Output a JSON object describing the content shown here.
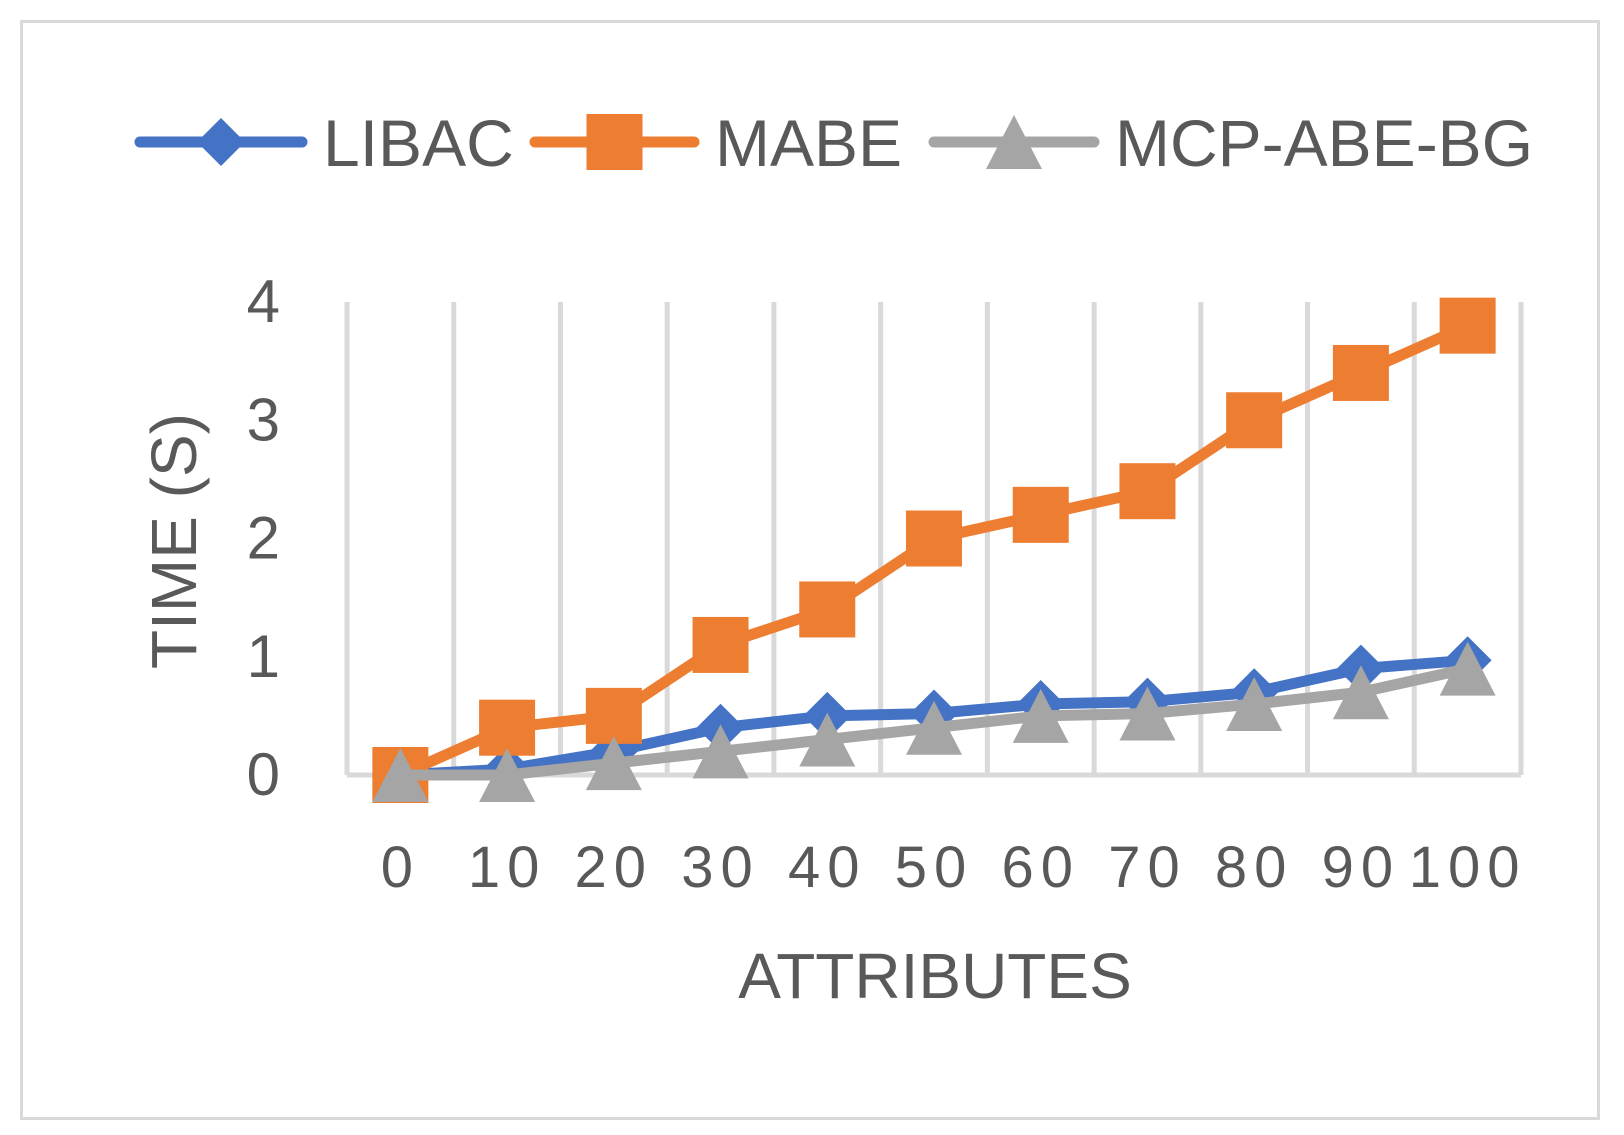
{
  "chart_data": {
    "type": "line",
    "title": "",
    "xlabel": "ATTRIBUTES",
    "ylabel": "TIME (S)",
    "categories": [
      "0",
      "10",
      "20",
      "30",
      "40",
      "50",
      "60",
      "70",
      "80",
      "90",
      "100"
    ],
    "ylim": [
      0,
      4
    ],
    "yticks": [
      "0",
      "1",
      "2",
      "3",
      "4"
    ],
    "grid": "vertical",
    "legend_position": "top",
    "series": [
      {
        "name": "LIBAC",
        "color": "#4472c4",
        "marker": "diamond",
        "values": [
          0.0,
          0.05,
          0.2,
          0.4,
          0.5,
          0.52,
          0.6,
          0.62,
          0.7,
          0.9,
          0.97
        ]
      },
      {
        "name": "MABE",
        "color": "#ed7d31",
        "marker": "square",
        "values": [
          0.0,
          0.4,
          0.5,
          1.1,
          1.4,
          2.0,
          2.2,
          2.4,
          3.0,
          3.4,
          3.8
        ]
      },
      {
        "name": "MCP-ABE-BG",
        "color": "#a5a5a5",
        "marker": "triangle",
        "values": [
          0.0,
          0.0,
          0.1,
          0.2,
          0.3,
          0.4,
          0.5,
          0.52,
          0.6,
          0.7,
          0.9
        ]
      }
    ]
  }
}
